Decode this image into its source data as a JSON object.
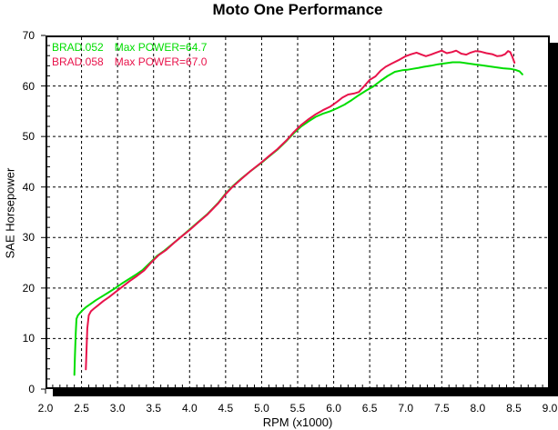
{
  "chart_data": {
    "type": "line",
    "title": "Moto One Performance",
    "xlabel": "RPM (x1000)",
    "ylabel": "SAE Horsepower",
    "xlim": [
      2.0,
      9.0
    ],
    "ylim": [
      0,
      70
    ],
    "grid": {
      "style": "dashed",
      "color": "#000000"
    },
    "background": "#ffffff",
    "frame_color": "#000000",
    "x_tick_values": [
      2.0,
      2.5,
      3.0,
      3.5,
      4.0,
      4.5,
      5.0,
      5.5,
      6.0,
      6.5,
      7.0,
      7.5,
      8.0,
      8.5,
      9.0
    ],
    "x_tick_labels": [
      "2.0",
      "2.5",
      "3.0",
      "3.5",
      "4.0",
      "4.5",
      "5.0",
      "5.5",
      "6.0",
      "6.5",
      "7.0",
      "7.5",
      "8.0",
      "8.5",
      "9.0"
    ],
    "x_minor_step": 0.1,
    "y_tick_values": [
      0,
      10,
      20,
      30,
      40,
      50,
      60,
      70
    ],
    "y_tick_labels": [
      "0",
      "10",
      "20",
      "30",
      "40",
      "50",
      "60",
      "70"
    ],
    "y_minor_step": 2,
    "legend": {
      "position": "top-left",
      "entries": [
        {
          "label": "BRAD.052",
          "max_label": "Max POWER=64.7",
          "max_power": 64.7,
          "color": "#00DD00"
        },
        {
          "label": "BRAD.058",
          "max_label": "Max POWER=67.0",
          "max_power": 67.0,
          "color": "#E8134B"
        }
      ]
    },
    "series": [
      {
        "name": "BRAD.052",
        "color": "#00DD00",
        "points": [
          [
            2.4,
            2.8
          ],
          [
            2.41,
            7.0
          ],
          [
            2.42,
            11.0
          ],
          [
            2.43,
            13.9
          ],
          [
            2.45,
            14.6
          ],
          [
            2.48,
            15.1
          ],
          [
            2.52,
            15.7
          ],
          [
            2.57,
            16.3
          ],
          [
            2.63,
            16.9
          ],
          [
            2.7,
            17.6
          ],
          [
            2.78,
            18.3
          ],
          [
            2.87,
            19.1
          ],
          [
            2.96,
            19.9
          ],
          [
            3.05,
            20.8
          ],
          [
            3.15,
            21.7
          ],
          [
            3.25,
            22.6
          ],
          [
            3.35,
            23.6
          ],
          [
            3.45,
            25.0
          ],
          [
            3.55,
            26.4
          ],
          [
            3.65,
            27.4
          ],
          [
            3.76,
            28.7
          ],
          [
            3.87,
            30.0
          ],
          [
            4.0,
            31.6
          ],
          [
            4.12,
            33.1
          ],
          [
            4.25,
            34.7
          ],
          [
            4.4,
            36.9
          ],
          [
            4.5,
            38.7
          ],
          [
            4.6,
            40.2
          ],
          [
            4.72,
            41.7
          ],
          [
            4.85,
            43.2
          ],
          [
            5.0,
            44.8
          ],
          [
            5.1,
            46.0
          ],
          [
            5.22,
            47.4
          ],
          [
            5.35,
            49.2
          ],
          [
            5.45,
            50.7
          ],
          [
            5.55,
            52.0
          ],
          [
            5.65,
            53.0
          ],
          [
            5.75,
            53.9
          ],
          [
            5.85,
            54.5
          ],
          [
            5.95,
            55.0
          ],
          [
            6.05,
            55.6
          ],
          [
            6.15,
            56.3
          ],
          [
            6.25,
            57.2
          ],
          [
            6.35,
            58.2
          ],
          [
            6.45,
            59.1
          ],
          [
            6.55,
            59.9
          ],
          [
            6.65,
            61.0
          ],
          [
            6.75,
            62.0
          ],
          [
            6.85,
            62.8
          ],
          [
            6.95,
            63.1
          ],
          [
            7.02,
            63.2
          ],
          [
            7.1,
            63.4
          ],
          [
            7.18,
            63.6
          ],
          [
            7.25,
            63.8
          ],
          [
            7.35,
            64.0
          ],
          [
            7.45,
            64.3
          ],
          [
            7.55,
            64.5
          ],
          [
            7.65,
            64.7
          ],
          [
            7.75,
            64.7
          ],
          [
            7.85,
            64.5
          ],
          [
            7.95,
            64.3
          ],
          [
            8.05,
            64.1
          ],
          [
            8.15,
            63.9
          ],
          [
            8.25,
            63.7
          ],
          [
            8.35,
            63.5
          ],
          [
            8.45,
            63.4
          ],
          [
            8.52,
            63.2
          ],
          [
            8.58,
            62.9
          ],
          [
            8.62,
            62.3
          ]
        ]
      },
      {
        "name": "BRAD.058",
        "color": "#E8134B",
        "points": [
          [
            2.56,
            3.9
          ],
          [
            2.57,
            8.0
          ],
          [
            2.58,
            12.0
          ],
          [
            2.6,
            14.6
          ],
          [
            2.63,
            15.4
          ],
          [
            2.67,
            15.9
          ],
          [
            2.73,
            16.6
          ],
          [
            2.8,
            17.4
          ],
          [
            2.88,
            18.2
          ],
          [
            2.97,
            19.2
          ],
          [
            3.07,
            20.3
          ],
          [
            3.17,
            21.4
          ],
          [
            3.27,
            22.4
          ],
          [
            3.37,
            23.5
          ],
          [
            3.47,
            25.1
          ],
          [
            3.57,
            26.5
          ],
          [
            3.67,
            27.5
          ],
          [
            3.78,
            28.9
          ],
          [
            3.88,
            30.1
          ],
          [
            4.0,
            31.5
          ],
          [
            4.12,
            33.0
          ],
          [
            4.25,
            34.6
          ],
          [
            4.4,
            36.8
          ],
          [
            4.5,
            38.6
          ],
          [
            4.6,
            40.1
          ],
          [
            4.72,
            41.6
          ],
          [
            4.85,
            43.2
          ],
          [
            5.0,
            44.9
          ],
          [
            5.1,
            46.1
          ],
          [
            5.22,
            47.5
          ],
          [
            5.35,
            49.3
          ],
          [
            5.45,
            50.9
          ],
          [
            5.55,
            52.3
          ],
          [
            5.65,
            53.4
          ],
          [
            5.75,
            54.4
          ],
          [
            5.85,
            55.2
          ],
          [
            5.95,
            55.9
          ],
          [
            6.05,
            56.9
          ],
          [
            6.12,
            57.7
          ],
          [
            6.2,
            58.3
          ],
          [
            6.28,
            58.5
          ],
          [
            6.35,
            58.8
          ],
          [
            6.42,
            59.9
          ],
          [
            6.5,
            61.2
          ],
          [
            6.58,
            61.9
          ],
          [
            6.65,
            63.0
          ],
          [
            6.72,
            63.8
          ],
          [
            6.8,
            64.4
          ],
          [
            6.9,
            65.1
          ],
          [
            7.0,
            65.9
          ],
          [
            7.08,
            66.3
          ],
          [
            7.15,
            66.6
          ],
          [
            7.22,
            66.2
          ],
          [
            7.28,
            65.9
          ],
          [
            7.35,
            66.2
          ],
          [
            7.42,
            66.6
          ],
          [
            7.5,
            67.0
          ],
          [
            7.57,
            66.5
          ],
          [
            7.64,
            66.7
          ],
          [
            7.7,
            67.0
          ],
          [
            7.77,
            66.4
          ],
          [
            7.84,
            66.2
          ],
          [
            7.9,
            66.6
          ],
          [
            7.97,
            66.9
          ],
          [
            8.04,
            66.8
          ],
          [
            8.12,
            66.5
          ],
          [
            8.2,
            66.3
          ],
          [
            8.27,
            65.9
          ],
          [
            8.33,
            66.0
          ],
          [
            8.38,
            66.3
          ],
          [
            8.42,
            66.9
          ],
          [
            8.45,
            66.7
          ],
          [
            8.48,
            65.8
          ],
          [
            8.51,
            64.6
          ]
        ]
      }
    ]
  }
}
